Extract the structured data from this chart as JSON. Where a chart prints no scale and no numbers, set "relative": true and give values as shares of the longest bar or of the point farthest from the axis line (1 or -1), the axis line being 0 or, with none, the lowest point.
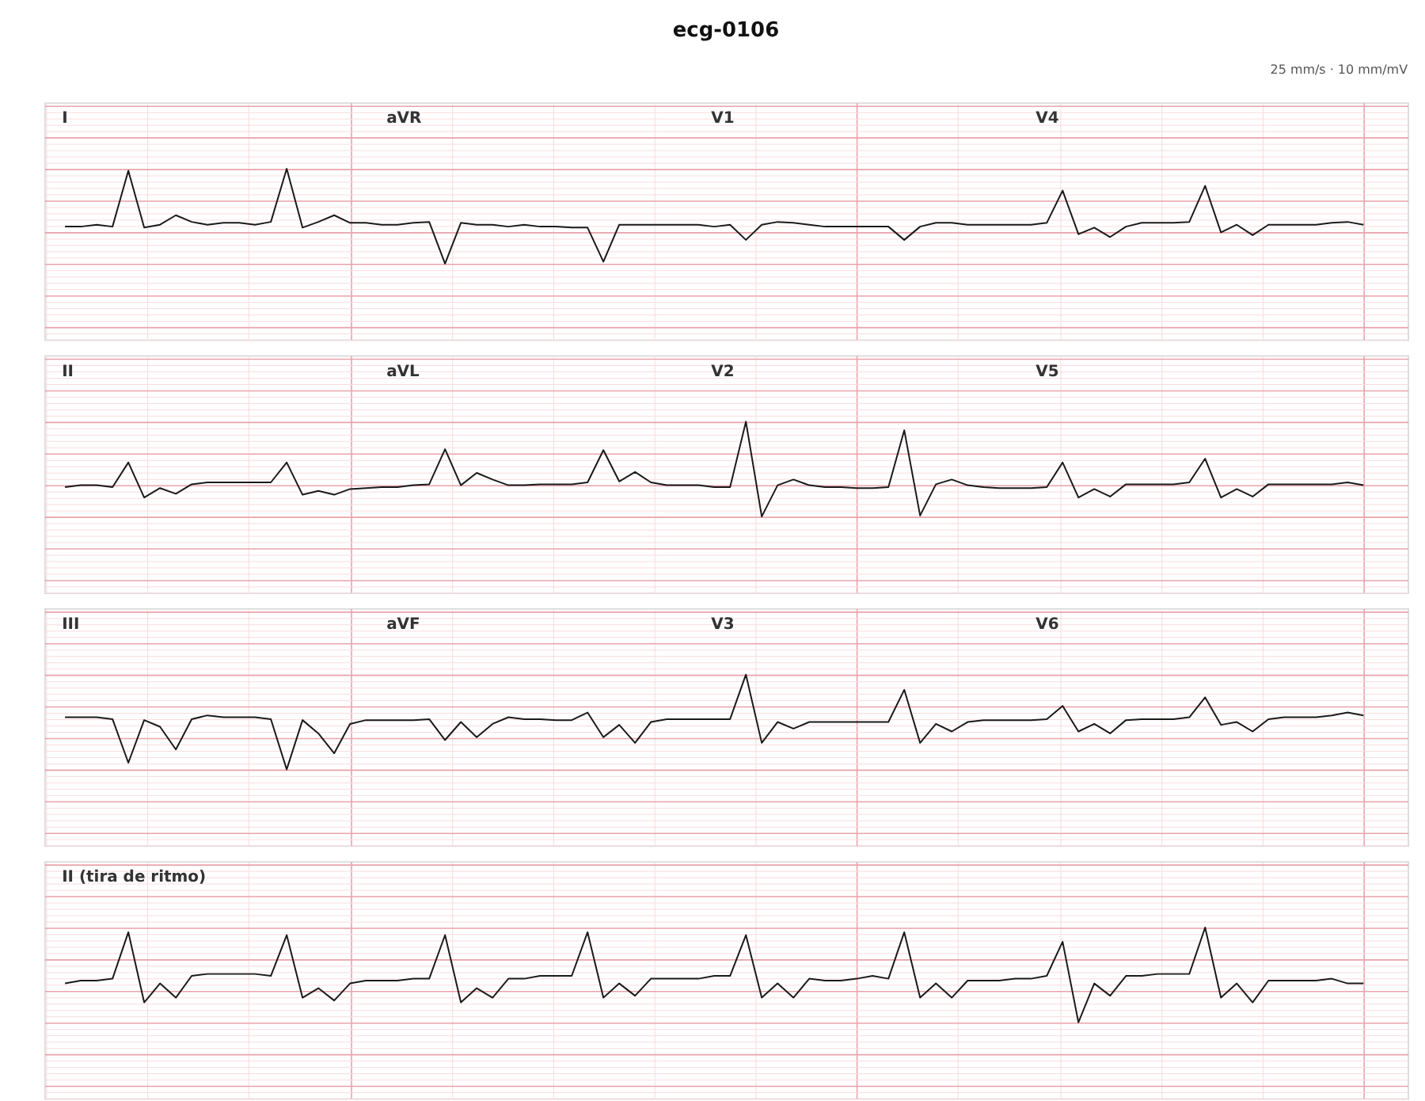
{
  "chart_data": [
    {
      "type": "line",
      "title": "ecg-0106",
      "subtitle": "25 mm/s · 10 mm/mV",
      "relative": true,
      "grid": true,
      "annotations": [
        "I",
        "aVR",
        "V1",
        "V4"
      ],
      "categories": [
        null,
        null,
        null,
        null,
        null,
        null,
        null,
        null,
        null,
        null,
        null,
        null,
        null,
        null,
        null,
        null,
        null,
        null,
        null,
        null,
        null,
        null,
        null,
        null,
        null,
        null,
        null,
        null,
        null,
        null,
        null,
        null,
        null,
        null,
        null,
        null,
        null,
        null,
        null,
        null,
        null,
        null,
        null,
        null,
        null,
        null,
        null,
        null,
        null,
        null,
        null,
        null,
        null,
        null,
        null,
        null,
        null,
        null,
        null,
        null,
        null,
        null,
        null,
        null,
        null,
        null,
        null,
        null,
        null,
        null,
        null,
        null,
        null,
        null,
        null,
        null,
        null,
        null,
        null,
        null,
        null,
        null,
        null
      ],
      "series": [
        {
          "color": "#1a1a1a",
          "values": [
            0.39,
            0.39,
            0.41,
            0.39,
            0.98,
            0.38,
            0.41,
            0.51,
            0.44,
            0.41,
            0.43,
            0.43,
            0.41,
            0.44,
            1,
            0.38,
            0.44,
            0.51,
            0.43,
            0.43,
            0.41,
            0.41,
            0.43,
            0.44,
            0,
            0.43,
            0.41,
            0.41,
            0.39,
            0.41,
            0.39,
            0.39,
            0.38,
            0.38,
            0.02,
            0.41,
            0.41,
            0.41,
            0.41,
            0.41,
            0.41,
            0.39,
            0.41,
            0.25,
            0.41,
            0.44,
            0.43,
            0.41,
            0.39,
            0.39,
            0.39,
            0.39,
            0.39,
            0.25,
            0.39,
            0.43,
            0.43,
            0.41,
            0.41,
            0.41,
            0.41,
            0.41,
            0.43,
            0.77,
            0.31,
            0.38,
            0.28,
            0.39,
            0.43,
            0.43,
            0.43,
            0.44,
            0.82,
            0.33,
            0.41,
            0.3,
            0.41,
            0.41,
            0.41,
            0.41,
            0.43,
            0.44,
            0.41
          ]
        }
      ]
    },
    {
      "type": "line",
      "relative": true,
      "grid": true,
      "annotations": [
        "II",
        "aVL",
        "V2",
        "V5"
      ],
      "categories": [
        null,
        null,
        null,
        null,
        null,
        null,
        null,
        null,
        null,
        null,
        null,
        null,
        null,
        null,
        null,
        null,
        null,
        null,
        null,
        null,
        null,
        null,
        null,
        null,
        null,
        null,
        null,
        null,
        null,
        null,
        null,
        null,
        null,
        null,
        null,
        null,
        null,
        null,
        null,
        null,
        null,
        null,
        null,
        null,
        null,
        null,
        null,
        null,
        null,
        null,
        null,
        null,
        null,
        null,
        null,
        null,
        null,
        null,
        null,
        null,
        null,
        null,
        null,
        null,
        null,
        null,
        null,
        null,
        null,
        null,
        null,
        null,
        null,
        null,
        null,
        null,
        null,
        null,
        null,
        null,
        null,
        null,
        null
      ],
      "series": [
        {
          "color": "#1a1a1a",
          "values": [
            0.31,
            0.33,
            0.33,
            0.31,
            0.57,
            0.2,
            0.3,
            0.24,
            0.34,
            0.36,
            0.36,
            0.36,
            0.36,
            0.36,
            0.57,
            0.23,
            0.27,
            0.23,
            0.29,
            0.3,
            0.31,
            0.31,
            0.33,
            0.34,
            0.71,
            0.33,
            0.46,
            0.39,
            0.33,
            0.33,
            0.34,
            0.34,
            0.34,
            0.36,
            0.7,
            0.37,
            0.47,
            0.36,
            0.33,
            0.33,
            0.33,
            0.31,
            0.31,
            1,
            0,
            0.33,
            0.39,
            0.33,
            0.31,
            0.31,
            0.3,
            0.3,
            0.31,
            0.91,
            0.01,
            0.34,
            0.39,
            0.33,
            0.31,
            0.3,
            0.3,
            0.3,
            0.31,
            0.57,
            0.2,
            0.29,
            0.21,
            0.34,
            0.34,
            0.34,
            0.34,
            0.36,
            0.61,
            0.2,
            0.29,
            0.21,
            0.34,
            0.34,
            0.34,
            0.34,
            0.34,
            0.36,
            0.33
          ]
        }
      ]
    },
    {
      "type": "line",
      "relative": true,
      "grid": true,
      "annotations": [
        "III",
        "aVF",
        "V3",
        "V6"
      ],
      "categories": [
        null,
        null,
        null,
        null,
        null,
        null,
        null,
        null,
        null,
        null,
        null,
        null,
        null,
        null,
        null,
        null,
        null,
        null,
        null,
        null,
        null,
        null,
        null,
        null,
        null,
        null,
        null,
        null,
        null,
        null,
        null,
        null,
        null,
        null,
        null,
        null,
        null,
        null,
        null,
        null,
        null,
        null,
        null,
        null,
        null,
        null,
        null,
        null,
        null,
        null,
        null,
        null,
        null,
        null,
        null,
        null,
        null,
        null,
        null,
        null,
        null,
        null,
        null,
        null,
        null,
        null,
        null,
        null,
        null,
        null,
        null,
        null,
        null,
        null,
        null,
        null,
        null,
        null,
        null,
        null,
        null,
        null,
        null
      ],
      "series": [
        {
          "color": "#1a1a1a",
          "values": [
            0.55,
            0.55,
            0.55,
            0.53,
            0.07,
            0.52,
            0.45,
            0.21,
            0.53,
            0.57,
            0.55,
            0.55,
            0.55,
            0.53,
            0,
            0.52,
            0.38,
            0.17,
            0.48,
            0.52,
            0.52,
            0.52,
            0.52,
            0.53,
            0.31,
            0.5,
            0.34,
            0.48,
            0.55,
            0.53,
            0.53,
            0.52,
            0.52,
            0.6,
            0.34,
            0.47,
            0.28,
            0.5,
            0.53,
            0.53,
            0.53,
            0.53,
            0.53,
            1,
            0.28,
            0.5,
            0.43,
            0.5,
            0.5,
            0.5,
            0.5,
            0.5,
            0.5,
            0.84,
            0.28,
            0.48,
            0.4,
            0.5,
            0.52,
            0.52,
            0.52,
            0.52,
            0.53,
            0.67,
            0.4,
            0.48,
            0.38,
            0.52,
            0.53,
            0.53,
            0.53,
            0.55,
            0.76,
            0.47,
            0.5,
            0.4,
            0.53,
            0.55,
            0.55,
            0.55,
            0.57,
            0.6,
            0.57
          ]
        }
      ]
    },
    {
      "type": "line",
      "relative": true,
      "grid": true,
      "annotations": [
        "II (tira de ritmo)"
      ],
      "categories": [
        null,
        null,
        null,
        null,
        null,
        null,
        null,
        null,
        null,
        null,
        null,
        null,
        null,
        null,
        null,
        null,
        null,
        null,
        null,
        null,
        null,
        null,
        null,
        null,
        null,
        null,
        null,
        null,
        null,
        null,
        null,
        null,
        null,
        null,
        null,
        null,
        null,
        null,
        null,
        null,
        null,
        null,
        null,
        null,
        null,
        null,
        null,
        null,
        null,
        null,
        null,
        null,
        null,
        null,
        null,
        null,
        null,
        null,
        null,
        null,
        null,
        null,
        null,
        null,
        null,
        null,
        null,
        null,
        null,
        null,
        null,
        null,
        null,
        null,
        null,
        null,
        null,
        null,
        null,
        null,
        null,
        null,
        null
      ],
      "series": [
        {
          "color": "#1a1a1a",
          "values": [
            0.41,
            0.44,
            0.44,
            0.46,
            0.95,
            0.21,
            0.41,
            0.26,
            0.49,
            0.51,
            0.51,
            0.51,
            0.51,
            0.49,
            0.92,
            0.26,
            0.36,
            0.23,
            0.41,
            0.44,
            0.44,
            0.44,
            0.46,
            0.46,
            0.92,
            0.21,
            0.36,
            0.26,
            0.46,
            0.46,
            0.49,
            0.49,
            0.49,
            0.95,
            0.26,
            0.41,
            0.28,
            0.46,
            0.46,
            0.46,
            0.46,
            0.49,
            0.49,
            0.92,
            0.26,
            0.41,
            0.26,
            0.46,
            0.44,
            0.44,
            0.46,
            0.49,
            0.46,
            0.95,
            0.26,
            0.41,
            0.26,
            0.44,
            0.44,
            0.44,
            0.46,
            0.46,
            0.49,
            0.85,
            0,
            0.41,
            0.28,
            0.49,
            0.49,
            0.51,
            0.51,
            0.51,
            1,
            0.26,
            0.41,
            0.21,
            0.44,
            0.44,
            0.44,
            0.44,
            0.46,
            0.41,
            0.41
          ]
        }
      ]
    }
  ]
}
